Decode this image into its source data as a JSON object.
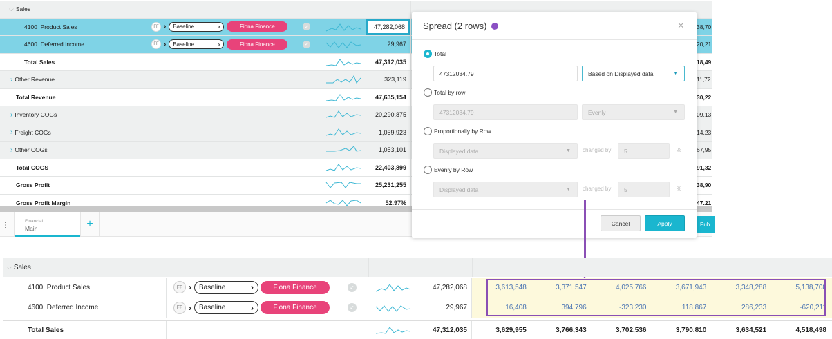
{
  "top_grid": {
    "rows": [
      {
        "label": "Sales",
        "type": "group-expanded",
        "bold": false,
        "value": "",
        "right_partial": ""
      },
      {
        "label": "4100  Product Sales",
        "type": "selected",
        "value": "47,282,068",
        "right_partial": "38,70",
        "ff": "FF",
        "scenario": "Baseline",
        "owner": "Fiona Finance"
      },
      {
        "label": "4600  Deferred Income",
        "type": "selected",
        "value": "29,967",
        "right_partial": "20,21",
        "ff": "FF",
        "scenario": "Baseline",
        "owner": "Fiona Finance"
      },
      {
        "label": "Total Sales",
        "type": "total",
        "value": "47,312,035",
        "right_partial": "18,49"
      },
      {
        "label": "Other Revenue",
        "type": "group-collapsed",
        "value": "323,119",
        "right_partial": "11,72"
      },
      {
        "label": "Total Revenue",
        "type": "total",
        "value": "47,635,154",
        "right_partial": "30,22"
      },
      {
        "label": "Inventory COGs",
        "type": "group-collapsed",
        "value": "20,290,875",
        "right_partial": "09,13"
      },
      {
        "label": "Freight COGs",
        "type": "group-collapsed",
        "value": "1,059,923",
        "right_partial": "14,23"
      },
      {
        "label": "Other COGs",
        "type": "group-collapsed",
        "value": "1,053,101",
        "right_partial": "67,95"
      },
      {
        "label": "Total COGS",
        "type": "total",
        "value": "22,403,899",
        "right_partial": "91,32"
      },
      {
        "label": "Gross Profit",
        "type": "total",
        "value": "25,231,255",
        "right_partial": "38,90"
      },
      {
        "label": "Gross Profit Margin",
        "type": "total",
        "value": "52.97%",
        "right_partial": "47.21"
      }
    ]
  },
  "sheet_tabs": {
    "active": {
      "category": "Financial",
      "name": "Main"
    },
    "add_label": "+",
    "publish_partial": "Pub"
  },
  "modal": {
    "title": "Spread (2 rows)",
    "info_icon": "i",
    "close_icon": "×",
    "options": [
      {
        "label": "Total",
        "selected": true,
        "amount": "47312034.79",
        "method": "Based on Displayed data"
      },
      {
        "label": "Total by row",
        "selected": false,
        "amount": "47312034.79",
        "method": "Evenly"
      },
      {
        "label": "Proportionally by Row",
        "selected": false,
        "basis": "Displayed data",
        "changed_by_label": "changed by",
        "changed_by": "5",
        "unit": "%"
      },
      {
        "label": "Evenly by Row",
        "selected": false,
        "basis": "Displayed data",
        "changed_by_label": "changed by",
        "changed_by": "5",
        "unit": "%"
      }
    ],
    "cancel_label": "Cancel",
    "apply_label": "Apply"
  },
  "bottom_grid": {
    "group_label": "Sales",
    "rows": [
      {
        "label": "4100  Product Sales",
        "ff": "FF",
        "scenario": "Baseline",
        "owner": "Fiona Finance",
        "total": "47,282,068",
        "months": [
          "3,613,548",
          "3,371,547",
          "4,025,766",
          "3,671,943",
          "3,348,288",
          "5,138,708"
        ]
      },
      {
        "label": "4600  Deferred Income",
        "ff": "FF",
        "scenario": "Baseline",
        "owner": "Fiona Finance",
        "total": "29,967",
        "months": [
          "16,408",
          "394,796",
          "-323,230",
          "118,867",
          "286,233",
          "-620,211"
        ]
      }
    ],
    "total_row": {
      "label": "Total Sales",
      "total": "47,312,035",
      "months": [
        "3,629,955",
        "3,766,343",
        "3,702,536",
        "3,790,810",
        "3,634,521",
        "4,518,498"
      ]
    }
  },
  "colors": {
    "accent": "#1ab6cf",
    "selection": "#7fd3e6",
    "owner_pill": "#e8437a",
    "highlight": "#8a4fb5",
    "spread_value": "#4a74b3",
    "spread_bg": "#fdf9dc"
  }
}
